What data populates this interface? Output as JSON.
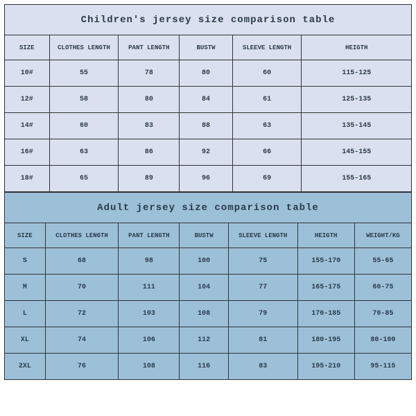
{
  "children": {
    "title": "Children's jersey size comparison table",
    "columns": [
      "SIZE",
      "CLOTHES LENGTH",
      "PANT LENGTH",
      "BUSTW",
      "SLEEVE LENGTH",
      "HEIGTH"
    ],
    "col_widths_pct": [
      11,
      17,
      15,
      13,
      17,
      27
    ],
    "rows": [
      [
        "10#",
        "55",
        "78",
        "80",
        "60",
        "115-125"
      ],
      [
        "12#",
        "58",
        "80",
        "84",
        "61",
        "125-135"
      ],
      [
        "14#",
        "60",
        "83",
        "88",
        "63",
        "135-145"
      ],
      [
        "16#",
        "63",
        "86",
        "92",
        "66",
        "145-155"
      ],
      [
        "18#",
        "65",
        "89",
        "96",
        "69",
        "155-165"
      ]
    ],
    "bg_color": "#dae0f0",
    "title_fontsize": 14,
    "header_fontsize": 9,
    "cell_fontsize": 10
  },
  "adult": {
    "title": "Adult jersey size comparison table",
    "columns": [
      "SIZE",
      "CLOTHES LENGTH",
      "PANT LENGTH",
      "BUSTW",
      "SLEEVE LENGTH",
      "HEIGTH",
      "WEIGHT/KG"
    ],
    "col_widths_pct": [
      10,
      18,
      15,
      12,
      17,
      14,
      14
    ],
    "rows": [
      [
        "S",
        "68",
        "98",
        "100",
        "75",
        "155-170",
        "55-65"
      ],
      [
        "M",
        "70",
        "111",
        "104",
        "77",
        "165-175",
        "60-75"
      ],
      [
        "L",
        "72",
        "103",
        "108",
        "79",
        "170-185",
        "70-85"
      ],
      [
        "XL",
        "74",
        "106",
        "112",
        "81",
        "180-195",
        "80-100"
      ],
      [
        "2XL",
        "76",
        "108",
        "116",
        "83",
        "195-210",
        "95-115"
      ]
    ],
    "bg_color": "#9cc0d8",
    "title_fontsize": 14,
    "header_fontsize": 9,
    "cell_fontsize": 10
  },
  "border_color": "#333333",
  "text_color": "#2a3a4a",
  "font_family": "Courier New, monospace"
}
